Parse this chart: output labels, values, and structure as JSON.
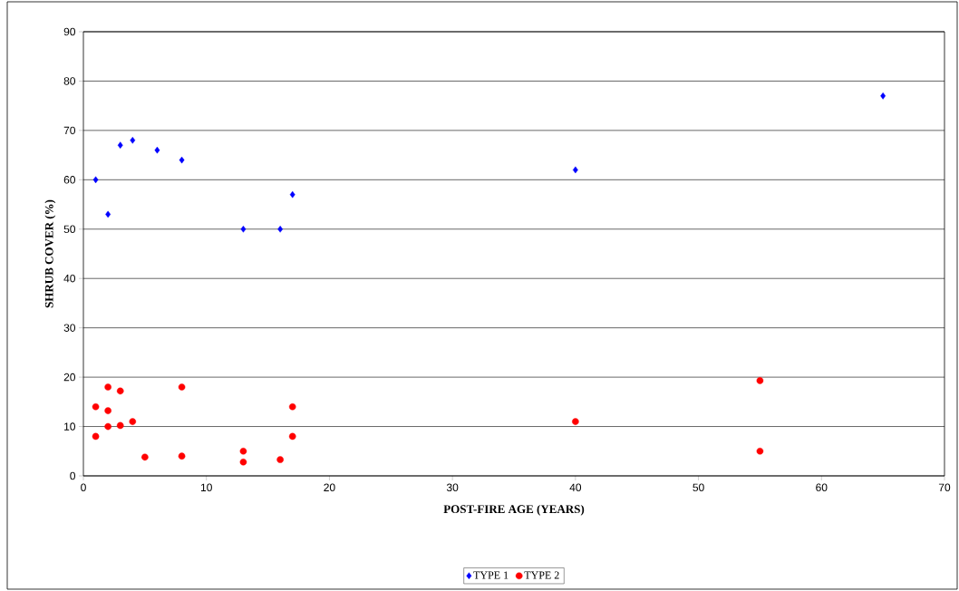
{
  "chart_data": {
    "type": "scatter",
    "xlabel": "POST-FIRE AGE (YEARS)",
    "ylabel": "SHRUB COVER (%)",
    "xlim": [
      0,
      70
    ],
    "xticks": [
      0,
      10,
      20,
      30,
      40,
      50,
      60,
      70
    ],
    "ylim": [
      0,
      90
    ],
    "yticks": [
      0,
      10,
      20,
      30,
      40,
      50,
      60,
      70,
      80,
      90
    ],
    "grid": "y",
    "legend": "bottom",
    "series": [
      {
        "name": "TYPE 1",
        "color": "#0000ff",
        "marker": "diamond",
        "x": [
          1,
          2,
          3,
          4,
          6,
          8,
          13,
          16,
          17,
          40,
          65
        ],
        "values": [
          60,
          53,
          67,
          68,
          66,
          64,
          50,
          50,
          57,
          62,
          77
        ]
      },
      {
        "name": "TYPE 2",
        "color": "#ff0000",
        "marker": "circle",
        "x": [
          1,
          1,
          2,
          2,
          2,
          3,
          3,
          4,
          5,
          8,
          8,
          13,
          13,
          16,
          17,
          17,
          40,
          55,
          55
        ],
        "values": [
          14,
          8,
          18,
          13.2,
          10,
          17.2,
          10.2,
          11,
          3.8,
          18,
          4,
          5,
          2.8,
          3.3,
          14,
          8,
          11,
          19.3,
          5
        ]
      }
    ]
  }
}
